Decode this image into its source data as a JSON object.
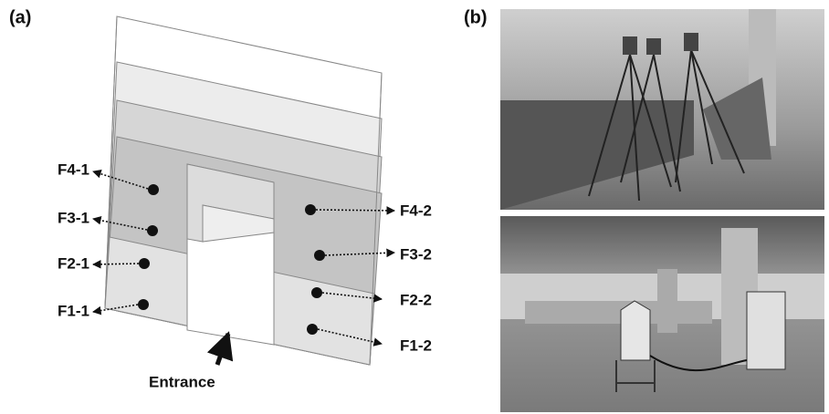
{
  "panel_a": {
    "label": "(a)",
    "left_labels": [
      "F4-1",
      "F3-1",
      "F2-1",
      "F1-1"
    ],
    "right_labels": [
      "F4-2",
      "F3-2",
      "F2-2",
      "F1-2"
    ],
    "entrance": "Entrance"
  },
  "panel_b": {
    "label": "(b)"
  }
}
